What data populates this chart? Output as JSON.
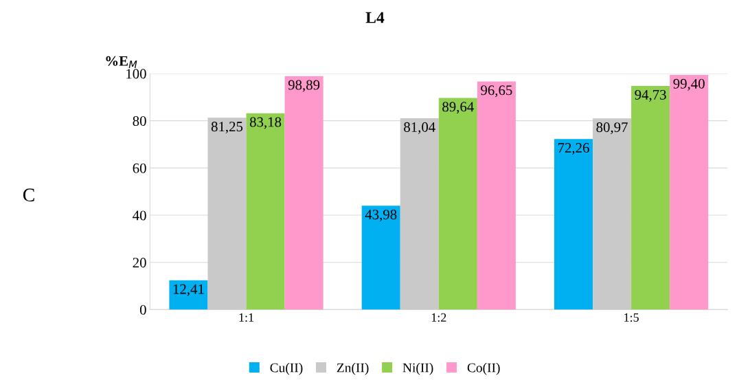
{
  "chart_data": {
    "type": "bar",
    "title": "L4",
    "ylabel": "%E$_{M}$",
    "categories": [
      "1:1",
      "1:2",
      "1:5"
    ],
    "series": [
      {
        "name": "Cu(II)",
        "color": "#00b0f0",
        "values": [
          12.41,
          43.98,
          72.26
        ],
        "value_labels": [
          "12,41",
          "43,98",
          "72,26"
        ]
      },
      {
        "name": "Zn(II)",
        "color": "#c9c9c9",
        "values": [
          81.25,
          81.04,
          80.97
        ],
        "value_labels": [
          "81,25",
          "81,04",
          "80,97"
        ]
      },
      {
        "name": "Ni(II)",
        "color": "#92d050",
        "values": [
          83.18,
          89.64,
          94.73
        ],
        "value_labels": [
          "83,18",
          "89,64",
          "94,73"
        ]
      },
      {
        "name": "Co(II)",
        "color": "#ff99cc",
        "values": [
          98.89,
          96.65,
          99.4
        ],
        "value_labels": [
          "98,89",
          "96,65",
          "99,40"
        ]
      }
    ],
    "ylim": [
      0,
      100
    ],
    "yticks": [
      0,
      20,
      40,
      60,
      80,
      100
    ],
    "annotations": [
      "C"
    ],
    "grid": "y",
    "legend": "bottom"
  }
}
